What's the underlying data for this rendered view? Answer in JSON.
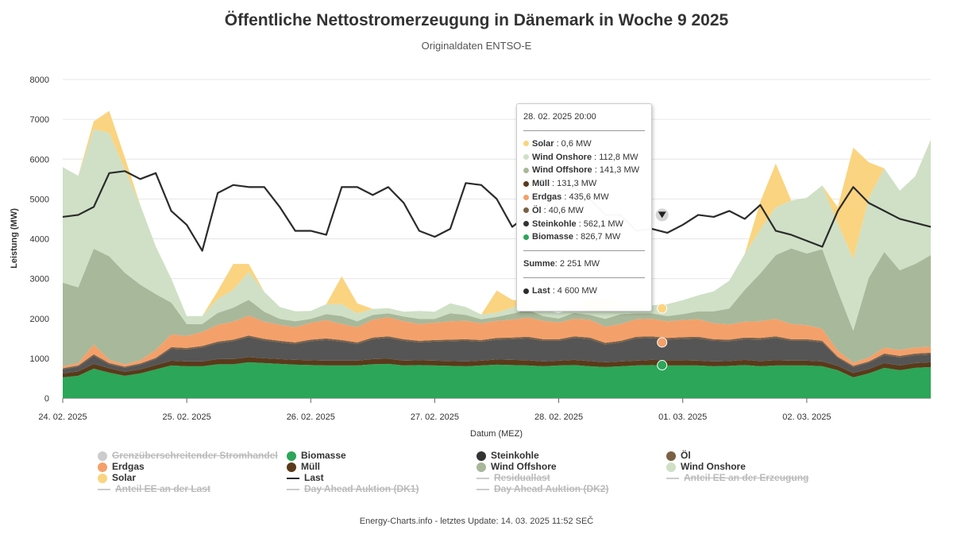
{
  "title": "Öffentliche Nettostromerzeugung in Dänemark in Woche 9 2025",
  "subtitle": "Originaldaten ENTSO-E",
  "footer": "Energy-Charts.info - letztes Update: 14. 03. 2025 11:52 SEČ",
  "chart_data": {
    "type": "area",
    "title": "Öffentliche Nettostromerzeugung in Dänemark in Woche 9 2025",
    "subtitle": "Originaldaten ENTSO-E",
    "ylabel": "Leistung (MW)",
    "xlabel": "Datum (MEZ)",
    "ylim": [
      0,
      8000
    ],
    "yticks": [
      0,
      1000,
      2000,
      3000,
      4000,
      5000,
      6000,
      7000,
      8000
    ],
    "xtick_labels": [
      "24. 02. 2025",
      "25. 02. 2025",
      "26. 02. 2025",
      "27. 02. 2025",
      "28. 02. 2025",
      "01. 03. 2025",
      "02. 03. 2025"
    ],
    "x_start_hour": 0,
    "x_end_hour": 168,
    "grid": true,
    "legend_position": "bottom",
    "stack_x_hours": [
      0,
      3,
      6,
      9,
      12,
      15,
      18,
      21,
      24,
      27,
      30,
      33,
      36,
      39,
      42,
      45,
      48,
      51,
      54,
      57,
      60,
      63,
      66,
      69,
      72,
      75,
      78,
      81,
      84,
      87,
      90,
      93,
      96,
      99,
      102,
      105,
      108,
      111,
      114,
      117,
      120,
      123,
      126,
      129,
      132,
      135,
      138,
      141,
      144,
      147,
      150,
      153,
      156,
      159,
      162,
      165,
      168
    ],
    "series": [
      {
        "name": "Biomasse",
        "color": "#2ca658",
        "values": [
          520,
          560,
          740,
          640,
          560,
          620,
          720,
          820,
          800,
          800,
          850,
          850,
          900,
          880,
          860,
          840,
          830,
          820,
          820,
          820,
          850,
          860,
          820,
          830,
          820,
          810,
          800,
          820,
          840,
          830,
          820,
          800,
          820,
          830,
          800,
          780,
          800,
          820,
          830,
          820,
          820,
          820,
          800,
          810,
          830,
          800,
          820,
          820,
          820,
          800,
          700,
          520,
          620,
          760,
          700,
          760,
          780
        ]
      },
      {
        "name": "Müll",
        "color": "#5a3a1a",
        "values": [
          100,
          110,
          120,
          110,
          100,
          100,
          110,
          120,
          120,
          120,
          130,
          130,
          130,
          120,
          120,
          120,
          120,
          120,
          120,
          120,
          130,
          130,
          120,
          120,
          120,
          120,
          120,
          120,
          130,
          130,
          130,
          120,
          120,
          130,
          130,
          120,
          120,
          120,
          130,
          130,
          130,
          120,
          120,
          120,
          130,
          130,
          130,
          120,
          120,
          120,
          110,
          110,
          110,
          120,
          120,
          120,
          120
        ]
      },
      {
        "name": "Steinkohle",
        "color": "#555555",
        "values": [
          100,
          120,
          200,
          100,
          100,
          120,
          150,
          300,
          300,
          350,
          400,
          450,
          500,
          450,
          420,
          400,
          480,
          520,
          480,
          420,
          500,
          520,
          500,
          450,
          480,
          500,
          520,
          480,
          500,
          520,
          550,
          520,
          500,
          550,
          550,
          450,
          480,
          560,
          550,
          520,
          540,
          560,
          520,
          500,
          520,
          540,
          560,
          500,
          500,
          480,
          200,
          150,
          160,
          200,
          200,
          200,
          200
        ]
      },
      {
        "name": "Öl",
        "color": "#7a6045",
        "values": [
          30,
          30,
          40,
          30,
          30,
          30,
          30,
          40,
          40,
          40,
          40,
          40,
          40,
          40,
          40,
          40,
          40,
          40,
          40,
          40,
          40,
          40,
          40,
          40,
          40,
          40,
          40,
          40,
          40,
          40,
          40,
          40,
          40,
          40,
          40,
          40,
          40,
          40,
          40,
          40,
          40,
          40,
          40,
          40,
          40,
          40,
          40,
          40,
          40,
          40,
          30,
          30,
          30,
          40,
          40,
          40,
          40
        ]
      },
      {
        "name": "Erdgas",
        "color": "#f4a06a",
        "values": [
          50,
          60,
          250,
          80,
          60,
          80,
          200,
          320,
          300,
          350,
          420,
          450,
          500,
          430,
          400,
          380,
          420,
          460,
          400,
          380,
          450,
          480,
          450,
          420,
          430,
          460,
          460,
          420,
          430,
          450,
          480,
          460,
          420,
          440,
          450,
          400,
          420,
          440,
          440,
          420,
          430,
          440,
          400,
          380,
          400,
          420,
          440,
          380,
          350,
          300,
          150,
          80,
          100,
          150,
          150,
          150,
          150
        ]
      },
      {
        "name": "Wind Offshore",
        "color": "#a8b89a",
        "values": [
          2100,
          1900,
          2400,
          2600,
          2300,
          1900,
          1400,
          800,
          300,
          200,
          300,
          350,
          400,
          250,
          150,
          150,
          100,
          150,
          200,
          150,
          120,
          100,
          120,
          130,
          100,
          200,
          150,
          100,
          100,
          150,
          200,
          120,
          100,
          150,
          120,
          200,
          250,
          150,
          140,
          130,
          150,
          200,
          300,
          400,
          800,
          1200,
          1600,
          1900,
          1800,
          2000,
          1500,
          800,
          2000,
          2400,
          2000,
          2100,
          2300
        ]
      },
      {
        "name": "Wind Onshore",
        "color": "#cfe0c6",
        "values": [
          2900,
          2800,
          3000,
          3100,
          2600,
          2000,
          1200,
          600,
          200,
          200,
          350,
          450,
          700,
          500,
          300,
          250,
          200,
          250,
          300,
          200,
          150,
          130,
          120,
          200,
          180,
          250,
          200,
          120,
          110,
          150,
          200,
          180,
          130,
          150,
          140,
          200,
          250,
          180,
          200,
          300,
          350,
          400,
          500,
          700,
          900,
          1100,
          1200,
          1200,
          1400,
          1600,
          1700,
          1800,
          2000,
          2100,
          2000,
          2200,
          2900
        ]
      },
      {
        "name": "Solar",
        "color": "#fad480",
        "values": [
          0,
          0,
          200,
          550,
          300,
          0,
          0,
          0,
          0,
          0,
          200,
          650,
          200,
          0,
          0,
          0,
          0,
          0,
          700,
          250,
          0,
          0,
          0,
          0,
          0,
          0,
          0,
          0,
          550,
          200,
          0,
          0,
          0,
          0,
          250,
          300,
          0,
          0,
          0,
          0,
          0,
          0,
          0,
          0,
          0,
          700,
          1100,
          0,
          0,
          0,
          400,
          2800,
          900,
          0,
          0,
          0,
          0
        ]
      }
    ],
    "last": {
      "name": "Last",
      "color": "#2b2b2b",
      "x_hours": [
        0,
        3,
        6,
        9,
        12,
        15,
        18,
        21,
        24,
        27,
        30,
        33,
        36,
        39,
        42,
        45,
        48,
        51,
        54,
        57,
        60,
        63,
        66,
        69,
        72,
        75,
        78,
        81,
        84,
        87,
        90,
        93,
        96,
        99,
        102,
        105,
        108,
        111,
        114,
        117,
        120,
        123,
        126,
        129,
        132,
        135,
        138,
        141,
        144,
        147,
        150,
        153,
        156,
        159,
        162,
        165,
        168
      ],
      "values": [
        4550,
        4600,
        4800,
        5650,
        5700,
        5500,
        5650,
        4700,
        4350,
        3700,
        5150,
        5350,
        5300,
        5300,
        4800,
        4200,
        4200,
        4100,
        5300,
        5300,
        5100,
        5300,
        4900,
        4200,
        4050,
        4250,
        5400,
        5350,
        5000,
        4300,
        4600,
        4700,
        5200,
        5300,
        5000,
        4600,
        4600,
        4200,
        4250,
        4150,
        4350,
        4600,
        4550,
        4700,
        4500,
        4850,
        4200,
        4100,
        3950,
        3800,
        4700,
        5300,
        4900,
        4700,
        4500,
        4400,
        4300
      ]
    }
  },
  "tooltip": {
    "date": "28. 02. 2025 20:00",
    "rows": [
      {
        "name": "Solar",
        "value": ": 0,6 MW",
        "color": "#fad480"
      },
      {
        "name": "Wind Onshore",
        "value": ": 112,8 MW",
        "color": "#cfe0c6"
      },
      {
        "name": "Wind Offshore",
        "value": ": 141,3 MW",
        "color": "#a8b89a"
      },
      {
        "name": "Müll",
        "value": ": 131,3 MW",
        "color": "#5a3a1a"
      },
      {
        "name": "Erdgas",
        "value": ": 435,6 MW",
        "color": "#f4a06a"
      },
      {
        "name": "Öl",
        "value": ": 40,6 MW",
        "color": "#7a6045"
      },
      {
        "name": "Steinkohle",
        "value": ": 562,1 MW",
        "color": "#333333"
      },
      {
        "name": "Biomasse",
        "value": ": 826,7 MW",
        "color": "#2ca658"
      }
    ],
    "sum_label": "Summe",
    "sum_value": ": 2 251 MW",
    "last_label": "Last",
    "last_value": ": 4 600 MW",
    "last_color": "#2b2b2b"
  },
  "legend": [
    {
      "label": "Grenzüberschreitender Stromhandel",
      "type": "dot",
      "color": "#cccccc",
      "active": false
    },
    {
      "label": "Biomasse",
      "type": "dot",
      "color": "#2ca658",
      "active": true
    },
    {
      "label": "Steinkohle",
      "type": "dot",
      "color": "#333333",
      "active": true
    },
    {
      "label": "Öl",
      "type": "dot",
      "color": "#7a6045",
      "active": true
    },
    {
      "label": "Erdgas",
      "type": "dot",
      "color": "#f4a06a",
      "active": true
    },
    {
      "label": "Müll",
      "type": "dot",
      "color": "#5a3a1a",
      "active": true
    },
    {
      "label": "Wind Offshore",
      "type": "dot",
      "color": "#a8b89a",
      "active": true
    },
    {
      "label": "Wind Onshore",
      "type": "dot",
      "color": "#cfe0c6",
      "active": true
    },
    {
      "label": "Solar",
      "type": "dot",
      "color": "#fad480",
      "active": true
    },
    {
      "label": "Last",
      "type": "line",
      "color": "#2b2b2b",
      "active": true
    },
    {
      "label": "Residuallast",
      "type": "line",
      "color": "#cccccc",
      "active": false
    },
    {
      "label": "Anteil EE an der Erzeugung",
      "type": "line",
      "color": "#cccccc",
      "active": false
    },
    {
      "label": "Anteil EE an der Last",
      "type": "line",
      "color": "#cccccc",
      "active": false
    },
    {
      "label": "Day Ahead Auktion (DK1)",
      "type": "line",
      "color": "#cccccc",
      "active": false
    },
    {
      "label": "Day Ahead Auktion (DK2)",
      "type": "line",
      "color": "#cccccc",
      "active": false
    }
  ]
}
